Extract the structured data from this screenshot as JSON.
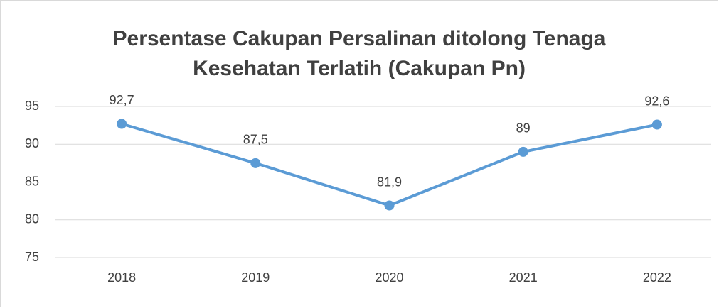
{
  "chart_data": {
    "type": "line",
    "title": "Persentase Cakupan Persalinan ditolong Tenaga Kesehatan Terlatih (Cakupan Pn)",
    "categories": [
      "2018",
      "2019",
      "2020",
      "2021",
      "2022"
    ],
    "values": [
      92.7,
      87.5,
      81.9,
      89,
      92.6
    ],
    "value_labels": [
      "92,7",
      "87,5",
      "81,9",
      "89",
      "92,6"
    ],
    "color": "#5b9bd5",
    "ylim": [
      75,
      95
    ],
    "yticks": [
      75,
      80,
      85,
      90,
      95
    ],
    "grid": true
  }
}
